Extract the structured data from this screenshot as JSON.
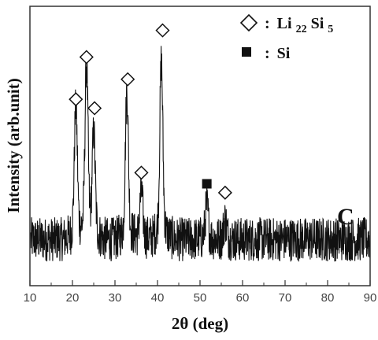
{
  "chart_data": {
    "type": "line",
    "title": "",
    "xlabel": "2θ (deg)",
    "ylabel": "Intensity (arb.unit)",
    "xlim": [
      10,
      90
    ],
    "x_ticks": [
      10,
      20,
      30,
      40,
      50,
      60,
      70,
      80,
      90
    ],
    "y_ticks_shown": false,
    "grid": false,
    "panel_label": "C",
    "legend_position": "top-right",
    "legend": [
      {
        "marker": "open-diamond",
        "prefix": ":",
        "label_base": "Li",
        "sub1": "22",
        "label_mid": "Si",
        "sub2": "5"
      },
      {
        "marker": "filled-square",
        "prefix": ":",
        "label_base": "Si"
      }
    ],
    "series": [
      {
        "baseline_intensity": 18,
        "noise_amplitude": 10,
        "peaks": [
          {
            "x": 20.8,
            "height": 55,
            "phase": "Li22Si5"
          },
          {
            "x": 23.3,
            "height": 72,
            "phase": "Li22Si5"
          },
          {
            "x": 25.0,
            "height": 43,
            "phase": "Li22Si5"
          },
          {
            "x": 32.8,
            "height": 62,
            "phase": "Li22Si5"
          },
          {
            "x": 36.2,
            "height": 20,
            "phase": "Li22Si5"
          },
          {
            "x": 40.9,
            "height": 74,
            "phase": "Li22Si5"
          },
          {
            "x": 51.6,
            "height": 14,
            "phase": "Si"
          },
          {
            "x": 55.9,
            "height": 8,
            "phase": "Li22Si5"
          }
        ]
      }
    ],
    "markers": [
      {
        "x": 20.8,
        "y": 81,
        "symbol": "open-diamond"
      },
      {
        "x": 23.3,
        "y": 100,
        "symbol": "open-diamond"
      },
      {
        "x": 25.2,
        "y": 77,
        "symbol": "open-diamond"
      },
      {
        "x": 33.0,
        "y": 90,
        "symbol": "open-diamond"
      },
      {
        "x": 36.2,
        "y": 48,
        "symbol": "open-diamond"
      },
      {
        "x": 41.2,
        "y": 112,
        "symbol": "open-diamond"
      },
      {
        "x": 51.6,
        "y": 43,
        "symbol": "filled-square"
      },
      {
        "x": 55.9,
        "y": 39,
        "symbol": "open-diamond"
      }
    ],
    "colors": {
      "line": "#111111",
      "marker": "#111111",
      "axis": "#333333"
    }
  }
}
